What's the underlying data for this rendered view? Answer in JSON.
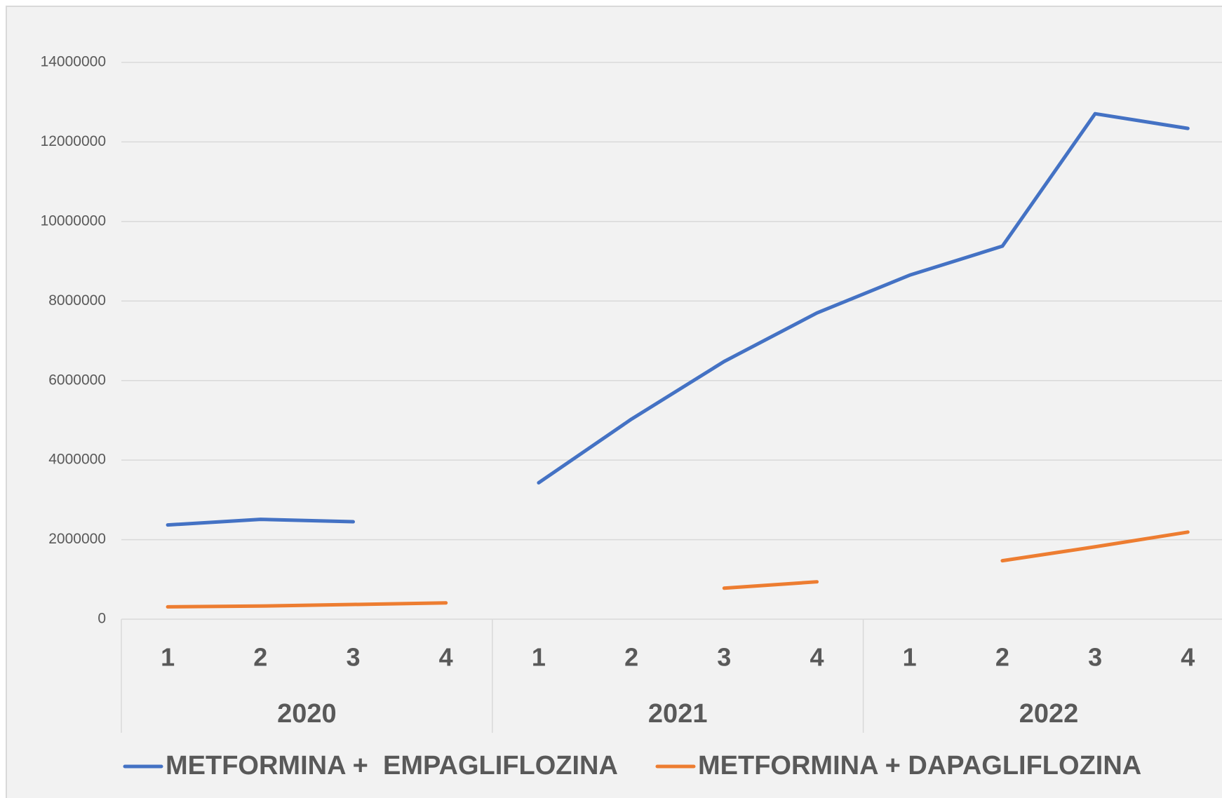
{
  "chart_data": {
    "type": "line",
    "categories": [
      "1",
      "2",
      "3",
      "4",
      "1",
      "2",
      "3",
      "4",
      "1",
      "2",
      "3",
      "4"
    ],
    "groups": [
      "2020",
      "2021",
      "2022"
    ],
    "series": [
      {
        "name": "METFORMINA +  EMPAGLIFLOZINA",
        "color": "#4472c4",
        "values": [
          2370000,
          2510000,
          2450000,
          null,
          3430000,
          5030000,
          6480000,
          7700000,
          8650000,
          9380000,
          12710000,
          12340000
        ]
      },
      {
        "name": "METFORMINA + DAPAGLIFLOZINA",
        "color": "#ed7d31",
        "values": [
          310000,
          330000,
          370000,
          410000,
          null,
          null,
          780000,
          940000,
          null,
          1470000,
          1820000,
          2190000
        ]
      }
    ],
    "ylim": [
      0,
      14000000
    ],
    "yticks": [
      0,
      2000000,
      4000000,
      6000000,
      8000000,
      10000000,
      12000000,
      14000000
    ],
    "grid": true,
    "legend": "bottom"
  }
}
